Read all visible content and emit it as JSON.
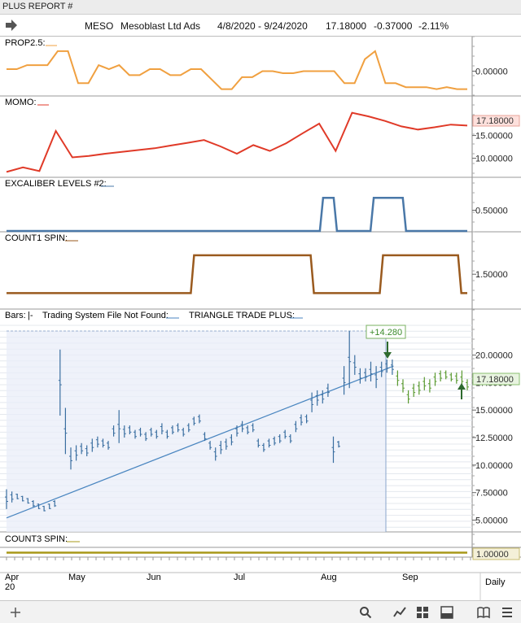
{
  "window": {
    "title": "PLUS REPORT #"
  },
  "header": {
    "symbol": "MESO",
    "name": "Mesoblast Ltd Ads",
    "date_range": "4/8/2020 - 9/24/2020",
    "last_price": "17.18000",
    "change": "-0.37000",
    "change_pct": "-2.11%"
  },
  "colors": {
    "prop": "#f0a040",
    "momo": "#e03a28",
    "excaliber": "#4a78a8",
    "count1": "#9a5a1e",
    "count3": "#a89818",
    "bars_up": "#3a6ea0",
    "bars_down": "#5a9a30",
    "trend": "#4a86c0",
    "price_tag_bg": "#e8f4e0",
    "momo_tag_bg": "#fde0dc"
  },
  "panels": {
    "prop": {
      "label": "PROP2.5:",
      "value_tag": "",
      "ticks": [
        "0.00000"
      ]
    },
    "momo": {
      "label": "MOMO:",
      "value_tag": "17.18000",
      "ticks": [
        "15.00000",
        "10.00000"
      ]
    },
    "excaliber": {
      "label": "EXCALIBER LEVELS #2:",
      "ticks": [
        "0.50000"
      ]
    },
    "count1": {
      "label": "COUNT1 SPIN:",
      "ticks": [
        "1.50000"
      ]
    },
    "bars": {
      "label_bars": "Bars:",
      "label_bars_sep": "|-",
      "label_system": "Trading System File Not Found:",
      "label_triangle": "TRIANGLE TRADE PLUS:",
      "gain_tag": "+14.280",
      "price_tag": "17.18000",
      "ticks": [
        "20.00000",
        "17.50000",
        "15.00000",
        "12.50000",
        "10.00000",
        "7.50000",
        "5.00000"
      ]
    },
    "count3": {
      "label": "COUNT3 SPIN:",
      "value_tag": "1.00000"
    }
  },
  "xaxis": {
    "months": [
      "Apr",
      "May",
      "Jun",
      "Jul",
      "Aug",
      "Sep"
    ],
    "year": "20",
    "period": "Daily"
  },
  "chart_data": {
    "type": "line",
    "symbol": "MESO",
    "x_range": [
      "2020-04-08",
      "2020-09-24"
    ],
    "x_labels": [
      "Apr",
      "May",
      "Jun",
      "Jul",
      "Aug",
      "Sep"
    ],
    "panels": [
      {
        "name": "PROP2.5",
        "type": "line",
        "ylim": [
          -0.12,
          0.12
        ],
        "values": [
          0.01,
          0.01,
          0.03,
          0.03,
          0.03,
          0.1,
          0.1,
          -0.06,
          -0.06,
          0.03,
          0.01,
          0.03,
          -0.02,
          -0.02,
          0.01,
          0.01,
          -0.02,
          -0.02,
          0.01,
          0.01,
          -0.04,
          -0.09,
          -0.09,
          -0.03,
          -0.03,
          0.0,
          0.0,
          -0.01,
          -0.01,
          0.0,
          0.0,
          0.0,
          0.0,
          -0.06,
          -0.06,
          0.06,
          0.1,
          -0.06,
          -0.06,
          -0.08,
          -0.08,
          -0.08,
          -0.09,
          -0.08,
          -0.09,
          -0.09
        ],
        "ticks": [
          0.0
        ]
      },
      {
        "name": "MOMO",
        "type": "line",
        "ylim": [
          6.0,
          21.0
        ],
        "values": [
          7.0,
          8.0,
          7.2,
          16.0,
          10.2,
          10.5,
          11.0,
          11.4,
          11.8,
          12.2,
          12.8,
          13.4,
          14.0,
          12.6,
          11.0,
          12.9,
          11.6,
          13.3,
          15.5,
          17.6,
          11.6,
          20.0,
          19.2,
          18.2,
          17.0,
          16.3,
          16.8,
          17.4,
          17.18
        ],
        "last_value": 17.18,
        "ticks": [
          15.0,
          10.0
        ]
      },
      {
        "name": "EXCALIBER LEVELS #2",
        "type": "step",
        "ylim": [
          0.0,
          1.0
        ],
        "segments": [
          [
            0,
            0.0
          ],
          [
            0.68,
            0.8
          ],
          [
            0.71,
            0.0
          ],
          [
            0.79,
            0.8
          ],
          [
            0.86,
            0.0
          ]
        ],
        "ticks": [
          0.5
        ]
      },
      {
        "name": "COUNT1 SPIN",
        "type": "step",
        "ylim": [
          0.6,
          2.3
        ],
        "segments": [
          [
            0,
            1.0
          ],
          [
            0.4,
            2.0
          ],
          [
            0.66,
            1.0
          ],
          [
            0.81,
            2.0
          ],
          [
            0.98,
            1.0
          ]
        ],
        "ticks": [
          1.5
        ]
      },
      {
        "name": "Bars",
        "type": "ohlc",
        "ylim": [
          4.0,
          23.0
        ],
        "ticks": [
          20.0,
          17.5,
          15.0,
          12.5,
          10.0,
          7.5,
          5.0
        ],
        "last_price": 17.18,
        "gain_label": "+14.280",
        "bars": [
          [
            6.0,
            7.8
          ],
          [
            6.6,
            7.6
          ],
          [
            6.9,
            7.4
          ],
          [
            6.7,
            7.2
          ],
          [
            6.5,
            7.0
          ],
          [
            6.2,
            6.8
          ],
          [
            6.0,
            6.5
          ],
          [
            5.8,
            6.3
          ],
          [
            6.0,
            6.5
          ],
          [
            6.2,
            6.8
          ],
          [
            14.5,
            20.5
          ],
          [
            11.0,
            15.2
          ],
          [
            9.6,
            11.6
          ],
          [
            10.4,
            11.8
          ],
          [
            11.0,
            12.0
          ],
          [
            10.8,
            11.8
          ],
          [
            11.2,
            12.4
          ],
          [
            11.6,
            12.6
          ],
          [
            11.6,
            12.4
          ],
          [
            11.4,
            12.2
          ],
          [
            12.6,
            13.6
          ],
          [
            12.0,
            15.0
          ],
          [
            12.5,
            13.6
          ],
          [
            12.8,
            13.6
          ],
          [
            12.4,
            13.2
          ],
          [
            12.6,
            13.4
          ],
          [
            12.2,
            13.0
          ],
          [
            12.6,
            13.4
          ],
          [
            12.4,
            13.2
          ],
          [
            12.8,
            13.8
          ],
          [
            12.4,
            13.2
          ],
          [
            12.8,
            13.6
          ],
          [
            13.0,
            13.8
          ],
          [
            12.6,
            13.4
          ],
          [
            13.0,
            13.8
          ],
          [
            13.6,
            14.4
          ],
          [
            13.8,
            14.6
          ],
          [
            12.2,
            13.0
          ],
          [
            11.4,
            12.2
          ],
          [
            10.4,
            11.6
          ],
          [
            11.0,
            12.2
          ],
          [
            11.4,
            12.4
          ],
          [
            11.8,
            12.8
          ],
          [
            12.6,
            13.6
          ],
          [
            13.0,
            14.0
          ],
          [
            12.8,
            13.6
          ],
          [
            13.0,
            13.8
          ],
          [
            11.6,
            12.4
          ],
          [
            11.2,
            12.0
          ],
          [
            11.6,
            12.4
          ],
          [
            11.8,
            12.6
          ],
          [
            12.0,
            12.8
          ],
          [
            12.4,
            13.2
          ],
          [
            12.0,
            12.8
          ],
          [
            13.0,
            14.0
          ],
          [
            13.6,
            14.6
          ],
          [
            13.8,
            14.6
          ],
          [
            14.8,
            16.6
          ],
          [
            15.4,
            16.8
          ],
          [
            15.6,
            16.8
          ],
          [
            16.2,
            17.4
          ],
          [
            10.2,
            12.6
          ],
          [
            11.6,
            12.2
          ],
          [
            16.4,
            19.0
          ],
          [
            17.0,
            22.2
          ],
          [
            18.2,
            20.0
          ],
          [
            17.4,
            18.8
          ],
          [
            17.6,
            18.8
          ],
          [
            17.6,
            19.4
          ],
          [
            17.0,
            19.0
          ],
          [
            18.0,
            19.4
          ],
          [
            18.4,
            19.6
          ],
          [
            18.2,
            19.6
          ],
          [
            17.2,
            18.6
          ],
          [
            16.6,
            17.8
          ],
          [
            15.6,
            16.8
          ],
          [
            16.2,
            17.4
          ],
          [
            16.4,
            17.6
          ],
          [
            16.8,
            18.0
          ],
          [
            16.6,
            17.8
          ],
          [
            17.2,
            18.4
          ],
          [
            17.6,
            18.6
          ],
          [
            17.8,
            18.6
          ],
          [
            17.6,
            18.4
          ],
          [
            17.4,
            18.4
          ],
          [
            17.0,
            18.6
          ],
          [
            16.8,
            17.8
          ]
        ],
        "down_from_index": 73,
        "trendline": [
          [
            0.0,
            5.2
          ],
          [
            0.84,
            19.0
          ]
        ]
      },
      {
        "name": "COUNT3 SPIN",
        "type": "line",
        "ylim": [
          0.0,
          2.0
        ],
        "values": [
          1.0,
          1.0
        ],
        "last_value": 1.0
      }
    ]
  }
}
